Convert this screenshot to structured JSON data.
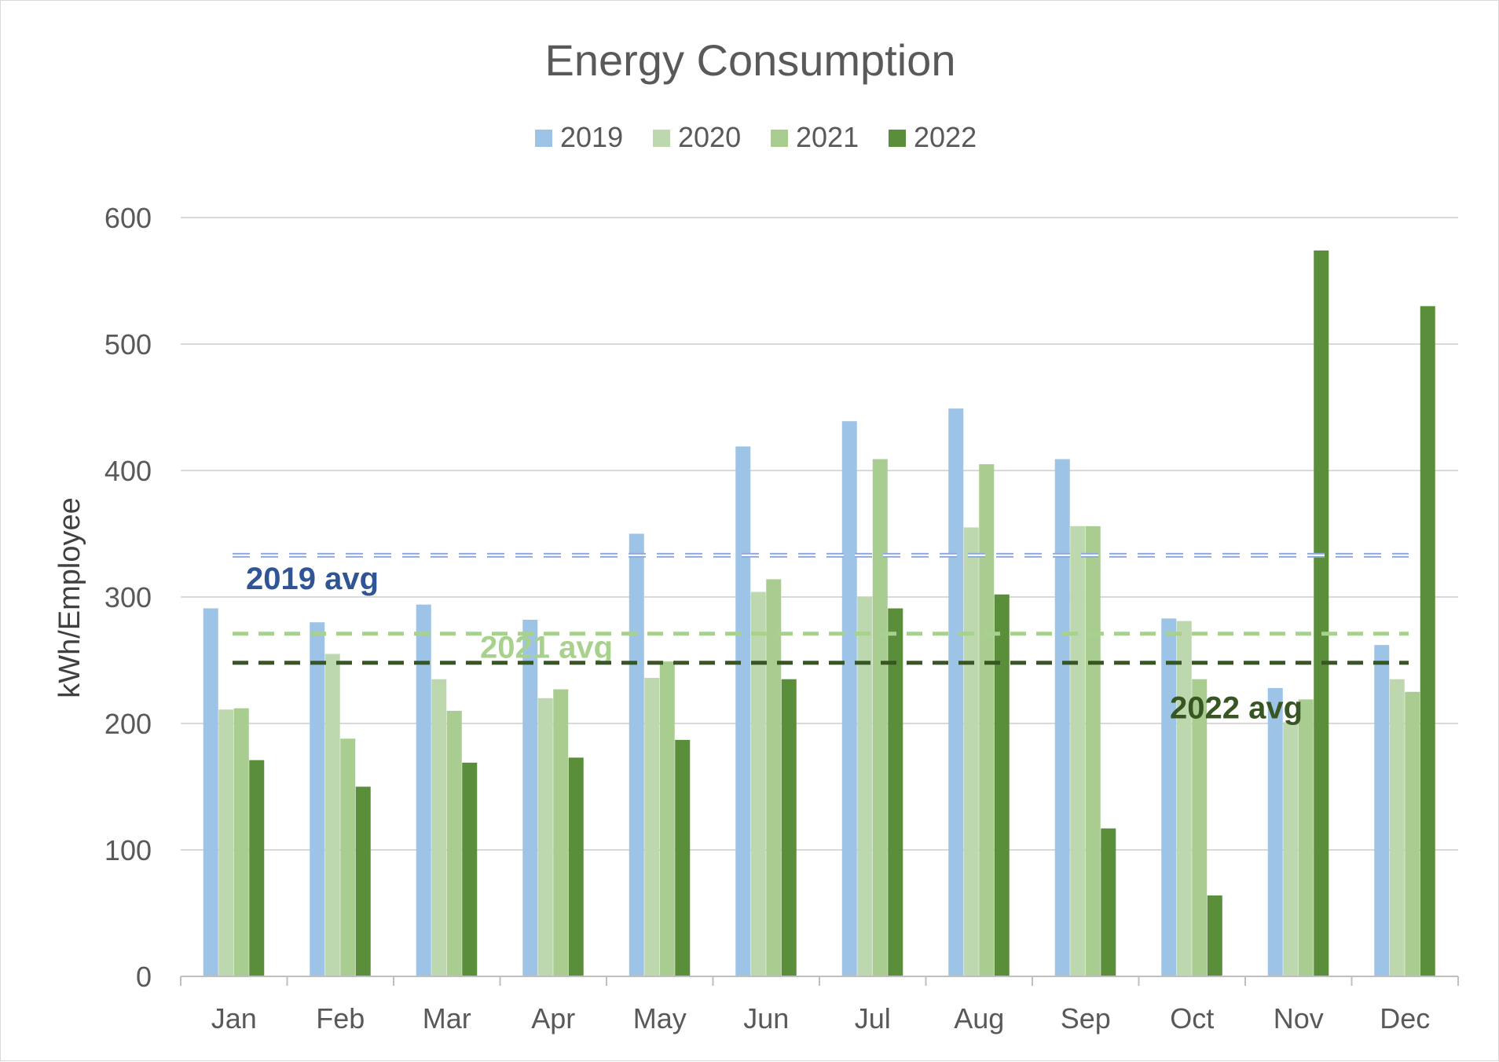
{
  "chart_data": {
    "type": "bar",
    "title": "Energy Consumption",
    "xlabel": "",
    "ylabel": "kWh/Employee",
    "ylim": [
      0,
      600
    ],
    "yticks": [
      0,
      100,
      200,
      300,
      400,
      500,
      600
    ],
    "grid": true,
    "legend_position": "top-center",
    "categories": [
      "Jan",
      "Feb",
      "Mar",
      "Apr",
      "May",
      "Jun",
      "Jul",
      "Aug",
      "Sep",
      "Oct",
      "Nov",
      "Dec"
    ],
    "series": [
      {
        "name": "2019",
        "color": "#9dc3e6",
        "values": [
          291,
          280,
          294,
          282,
          350,
          419,
          439,
          449,
          409,
          283,
          228,
          262
        ]
      },
      {
        "name": "2020",
        "color": "#bdd7ae",
        "values": [
          211,
          255,
          235,
          220,
          236,
          304,
          300,
          355,
          356,
          281,
          201,
          235
        ]
      },
      {
        "name": "2021",
        "color": "#a9cd90",
        "values": [
          212,
          188,
          210,
          227,
          249,
          314,
          409,
          405,
          356,
          235,
          219,
          225
        ]
      },
      {
        "name": "2022",
        "color": "#5b8e3a",
        "values": [
          171,
          150,
          169,
          173,
          187,
          235,
          291,
          302,
          117,
          64,
          574,
          530
        ]
      }
    ],
    "average_lines": [
      {
        "label": "2019 avg",
        "value": 333,
        "line_color": "#8faadc",
        "label_color": "#2f5597",
        "style": "double-dash"
      },
      {
        "label": "2021 avg",
        "value": 271,
        "line_color": "#a9d18e",
        "label_color": "#a9d18e",
        "style": "dash"
      },
      {
        "label": "2022 avg",
        "value": 248,
        "line_color": "#375623",
        "label_color": "#375623",
        "style": "dash"
      }
    ]
  }
}
